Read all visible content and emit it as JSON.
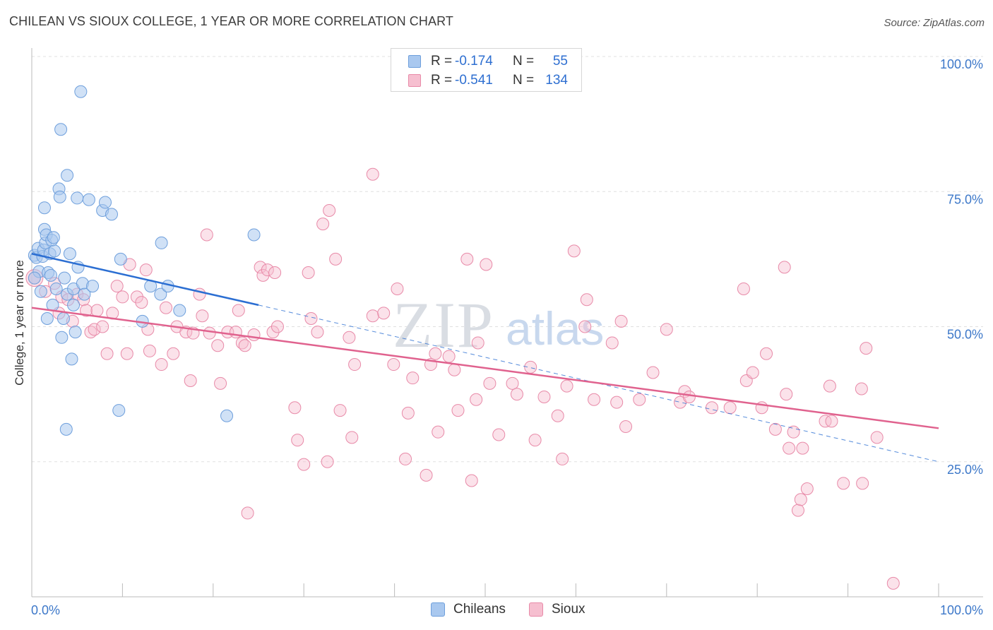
{
  "title": "CHILEAN VS SIOUX COLLEGE, 1 YEAR OR MORE CORRELATION CHART",
  "source": "Source: ZipAtlas.com",
  "watermark": {
    "zip": "ZIP",
    "atlas": "atlas"
  },
  "legend": {
    "r_label": "R =",
    "n_label": "N =",
    "rows": [
      {
        "r": "-0.174",
        "n": "55"
      },
      {
        "r": "-0.541",
        "n": "134"
      }
    ]
  },
  "bottom_legend": [
    "Chileans",
    "Sioux"
  ],
  "colors": {
    "blue_fill": "#a9c8ef",
    "blue_stroke": "#6e9fdc",
    "blue_line": "#2b6ed2",
    "pink_fill": "#f6bfd0",
    "pink_stroke": "#e88aa8",
    "pink_line": "#e0628e",
    "axis_text": "#3d78c9",
    "grid": "#e0e0e0"
  },
  "chart_data": {
    "type": "scatter",
    "title": "CHILEAN VS SIOUX COLLEGE, 1 YEAR OR MORE CORRELATION CHART",
    "xlabel": "",
    "ylabel": "College, 1 year or more",
    "xlim": [
      0,
      100
    ],
    "ylim": [
      0,
      100
    ],
    "x_tick_labels": [
      "0.0%",
      "100.0%"
    ],
    "y_tick_labels": [
      "100.0%",
      "75.0%",
      "50.0%",
      "25.0%"
    ],
    "y_ticks": [
      100,
      75,
      50,
      25
    ],
    "series": [
      {
        "name": "Chileans",
        "r": -0.174,
        "n": 55,
        "trend": {
          "x": [
            0,
            25
          ],
          "y": [
            63.5,
            54.0
          ],
          "dashed_to": [
            100,
            25.0
          ]
        },
        "points": [
          [
            0.3,
            63.2
          ],
          [
            0.5,
            62.8
          ],
          [
            0.7,
            64.5
          ],
          [
            0.8,
            60.2
          ],
          [
            1.0,
            56.5
          ],
          [
            1.2,
            63.0
          ],
          [
            1.3,
            64.2
          ],
          [
            1.4,
            72.0
          ],
          [
            1.4,
            68.0
          ],
          [
            1.5,
            65.5
          ],
          [
            1.6,
            67.0
          ],
          [
            1.7,
            51.5
          ],
          [
            1.8,
            60.0
          ],
          [
            2.0,
            63.5
          ],
          [
            2.2,
            66.0
          ],
          [
            2.3,
            54.0
          ],
          [
            2.4,
            66.5
          ],
          [
            2.5,
            64.0
          ],
          [
            2.7,
            57.0
          ],
          [
            3.0,
            75.5
          ],
          [
            3.1,
            74.0
          ],
          [
            3.2,
            86.5
          ],
          [
            3.3,
            48.0
          ],
          [
            3.5,
            51.5
          ],
          [
            3.6,
            59.0
          ],
          [
            3.8,
            31.0
          ],
          [
            3.9,
            56.0
          ],
          [
            3.9,
            78.0
          ],
          [
            4.2,
            63.5
          ],
          [
            4.4,
            44.0
          ],
          [
            4.6,
            57.0
          ],
          [
            4.6,
            54.0
          ],
          [
            4.8,
            49.0
          ],
          [
            5.0,
            73.8
          ],
          [
            5.1,
            61.0
          ],
          [
            5.4,
            93.5
          ],
          [
            5.6,
            58.0
          ],
          [
            5.8,
            56.0
          ],
          [
            6.3,
            73.5
          ],
          [
            6.7,
            57.5
          ],
          [
            7.8,
            71.5
          ],
          [
            8.1,
            73.0
          ],
          [
            8.8,
            70.8
          ],
          [
            9.6,
            34.5
          ],
          [
            9.8,
            62.5
          ],
          [
            12.2,
            51.0
          ],
          [
            13.1,
            57.5
          ],
          [
            14.2,
            56.0
          ],
          [
            14.3,
            65.5
          ],
          [
            15.0,
            57.5
          ],
          [
            16.3,
            53.0
          ],
          [
            21.5,
            33.5
          ],
          [
            24.5,
            67.0
          ],
          [
            0.3,
            59.0
          ],
          [
            2.1,
            59.5
          ]
        ]
      },
      {
        "name": "Sioux",
        "r": -0.541,
        "n": 134,
        "trend": {
          "x": [
            0,
            100
          ],
          "y": [
            53.5,
            31.2
          ]
        },
        "points": [
          [
            0.3,
            59.0
          ],
          [
            1.5,
            56.5
          ],
          [
            2.5,
            58.0
          ],
          [
            3.0,
            52.5
          ],
          [
            3.3,
            55.5
          ],
          [
            4.0,
            55.0
          ],
          [
            4.5,
            51.0
          ],
          [
            5.0,
            56.0
          ],
          [
            5.7,
            55.0
          ],
          [
            6.0,
            53.0
          ],
          [
            6.5,
            49.0
          ],
          [
            6.9,
            49.5
          ],
          [
            7.2,
            53.0
          ],
          [
            7.8,
            50.0
          ],
          [
            8.3,
            45.0
          ],
          [
            8.9,
            52.5
          ],
          [
            9.4,
            57.5
          ],
          [
            10.0,
            55.5
          ],
          [
            10.5,
            45.0
          ],
          [
            10.8,
            61.5
          ],
          [
            11.6,
            55.5
          ],
          [
            12.1,
            54.5
          ],
          [
            12.6,
            60.5
          ],
          [
            12.8,
            49.5
          ],
          [
            13.0,
            45.5
          ],
          [
            14.3,
            43.0
          ],
          [
            14.8,
            53.5
          ],
          [
            15.6,
            45.0
          ],
          [
            16.0,
            50.0
          ],
          [
            17.0,
            49.0
          ],
          [
            17.5,
            40.0
          ],
          [
            17.8,
            48.8
          ],
          [
            18.5,
            56.0
          ],
          [
            18.8,
            52.0
          ],
          [
            19.3,
            67.0
          ],
          [
            19.6,
            48.8
          ],
          [
            20.5,
            46.5
          ],
          [
            20.8,
            39.5
          ],
          [
            21.6,
            49.0
          ],
          [
            22.5,
            49.0
          ],
          [
            22.8,
            53.0
          ],
          [
            23.2,
            47.0
          ],
          [
            23.5,
            46.5
          ],
          [
            24.5,
            48.5
          ],
          [
            25.2,
            61.0
          ],
          [
            25.5,
            59.5
          ],
          [
            26.0,
            60.5
          ],
          [
            26.6,
            49.0
          ],
          [
            26.8,
            60.0
          ],
          [
            27.1,
            50.0
          ],
          [
            29.0,
            35.0
          ],
          [
            29.3,
            29.0
          ],
          [
            30.0,
            24.5
          ],
          [
            30.5,
            60.0
          ],
          [
            30.8,
            51.5
          ],
          [
            31.5,
            49.0
          ],
          [
            32.1,
            69.0
          ],
          [
            32.6,
            25.0
          ],
          [
            32.8,
            71.5
          ],
          [
            33.5,
            62.5
          ],
          [
            34.0,
            34.5
          ],
          [
            35.0,
            48.0
          ],
          [
            35.3,
            29.5
          ],
          [
            35.6,
            43.0
          ],
          [
            37.6,
            52.0
          ],
          [
            37.6,
            78.2
          ],
          [
            38.8,
            52.5
          ],
          [
            39.9,
            43.0
          ],
          [
            40.3,
            57.0
          ],
          [
            41.2,
            25.5
          ],
          [
            41.5,
            34.0
          ],
          [
            42.0,
            40.5
          ],
          [
            43.5,
            22.5
          ],
          [
            44.0,
            43.0
          ],
          [
            44.5,
            45.0
          ],
          [
            44.8,
            30.5
          ],
          [
            46.0,
            44.5
          ],
          [
            46.6,
            42.0
          ],
          [
            47.0,
            34.5
          ],
          [
            48.0,
            62.5
          ],
          [
            48.5,
            21.5
          ],
          [
            49.0,
            36.5
          ],
          [
            49.2,
            47.0
          ],
          [
            50.1,
            61.5
          ],
          [
            50.5,
            39.5
          ],
          [
            51.5,
            30.0
          ],
          [
            53.0,
            39.5
          ],
          [
            53.5,
            37.5
          ],
          [
            55.0,
            42.5
          ],
          [
            55.5,
            29.0
          ],
          [
            56.5,
            37.0
          ],
          [
            58.0,
            33.5
          ],
          [
            58.5,
            25.5
          ],
          [
            59.0,
            39.0
          ],
          [
            59.8,
            64.0
          ],
          [
            61.0,
            50.0
          ],
          [
            61.2,
            55.0
          ],
          [
            62.0,
            36.5
          ],
          [
            64.0,
            47.0
          ],
          [
            64.5,
            36.0
          ],
          [
            65.0,
            51.0
          ],
          [
            65.5,
            31.5
          ],
          [
            67.0,
            36.5
          ],
          [
            68.5,
            41.5
          ],
          [
            70.0,
            49.5
          ],
          [
            71.5,
            36.0
          ],
          [
            72.0,
            38.0
          ],
          [
            72.5,
            37.0
          ],
          [
            75.0,
            35.0
          ],
          [
            77.0,
            35.0
          ],
          [
            78.5,
            57.0
          ],
          [
            78.8,
            40.0
          ],
          [
            79.5,
            41.5
          ],
          [
            80.5,
            35.0
          ],
          [
            81.0,
            45.0
          ],
          [
            82.0,
            31.0
          ],
          [
            83.2,
            37.5
          ],
          [
            83.0,
            61.0
          ],
          [
            83.5,
            27.5
          ],
          [
            84.0,
            30.5
          ],
          [
            84.5,
            16.0
          ],
          [
            84.8,
            18.0
          ],
          [
            85.0,
            27.5
          ],
          [
            85.5,
            20.0
          ],
          [
            87.5,
            32.5
          ],
          [
            88.0,
            39.0
          ],
          [
            88.2,
            32.5
          ],
          [
            89.5,
            21.0
          ],
          [
            91.5,
            38.5
          ],
          [
            91.6,
            21.0
          ],
          [
            92.0,
            46.0
          ],
          [
            93.2,
            29.5
          ],
          [
            95.0,
            2.5
          ],
          [
            23.8,
            15.5
          ]
        ]
      }
    ]
  }
}
